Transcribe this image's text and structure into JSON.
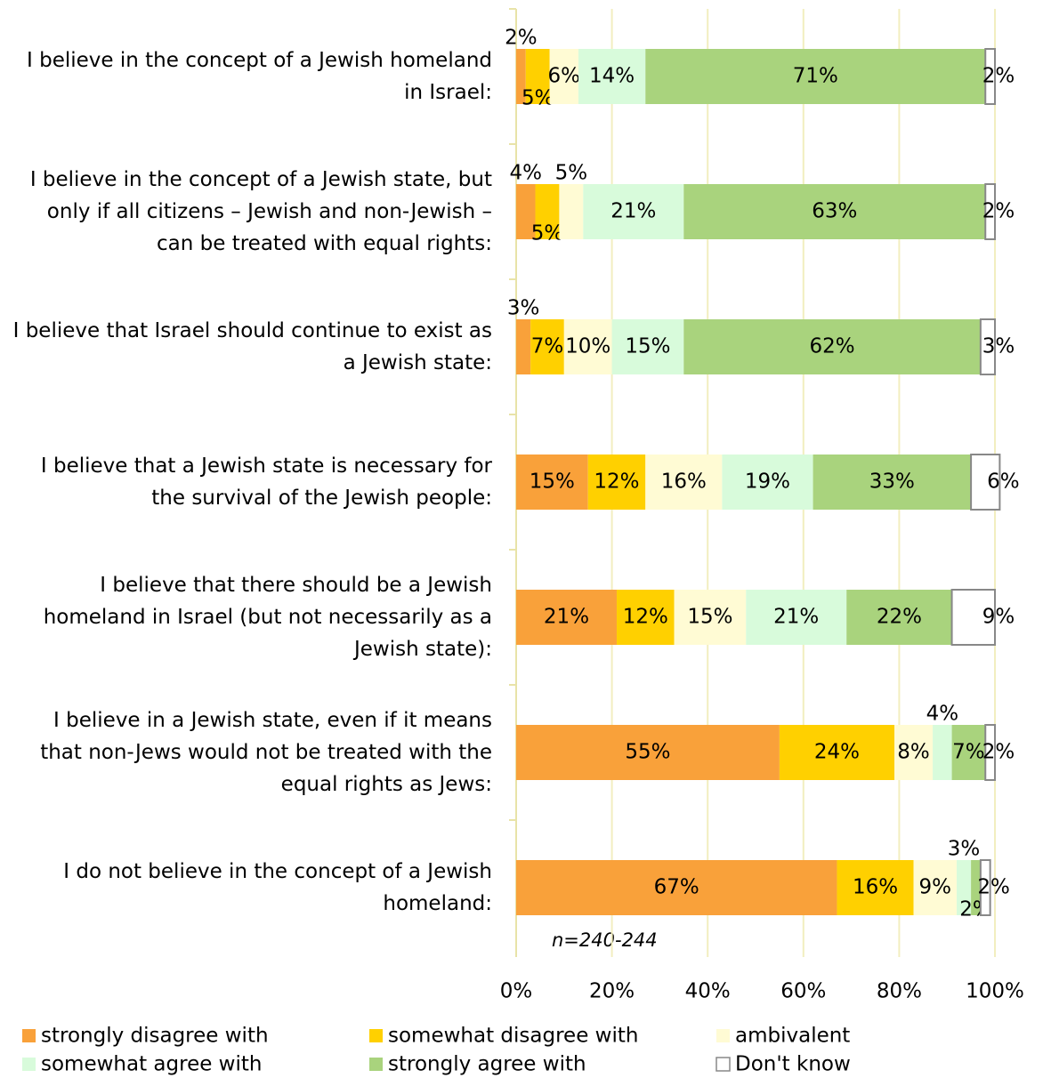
{
  "chart_data": {
    "type": "stacked-bar-horizontal",
    "categories": [
      "I believe in the concept of a Jewish homeland in Israel:",
      "I believe in the concept of a Jewish state, but only if all citizens – Jewish and non-Jewish – can be treated with equal rights:",
      "I believe that Israel should continue to exist as a Jewish state:",
      "I believe that a Jewish state is necessary for the survival of the Jewish people:",
      "I believe that there should be a Jewish homeland in Israel (but not necessarily as a Jewish state):",
      "I believe in a Jewish state, even if it means that non-Jews would not be treated with the equal rights as Jews:",
      "I do not believe in the concept of a Jewish homeland:"
    ],
    "series": [
      {
        "name": "strongly disagree with",
        "color": "#f9a13a",
        "values": [
          2,
          4,
          3,
          15,
          21,
          55,
          67
        ],
        "value_labels": [
          "2%",
          "4%",
          "3%",
          "15%",
          "21%",
          "55%",
          "67%"
        ]
      },
      {
        "name": "somewhat disagree with",
        "color": "#ffd000",
        "values": [
          5,
          5,
          7,
          12,
          12,
          24,
          16
        ],
        "value_labels": [
          "5%",
          "5%",
          "7%",
          "12%",
          "12%",
          "24%",
          "16%"
        ]
      },
      {
        "name": "ambivalent",
        "color": "#fffbd4",
        "values": [
          6,
          5,
          10,
          16,
          15,
          8,
          9
        ],
        "value_labels": [
          "6%",
          "5%",
          "10%",
          "16%",
          "15%",
          "8%",
          "9%"
        ]
      },
      {
        "name": "somewhat agree with",
        "color": "#d8fbdb",
        "values": [
          14,
          21,
          15,
          19,
          21,
          4,
          3
        ],
        "value_labels": [
          "14%",
          "21%",
          "15%",
          "19%",
          "21%",
          "4%",
          "3%"
        ]
      },
      {
        "name": "strongly agree with",
        "color": "#a9d37d",
        "values": [
          71,
          63,
          62,
          33,
          22,
          7,
          2
        ],
        "value_labels": [
          "71%",
          "63%",
          "62%",
          "33%",
          "22%",
          "7%",
          "2%"
        ]
      },
      {
        "name": "Don't know",
        "color": "#ffffff",
        "values": [
          2,
          2,
          3,
          6,
          9,
          2,
          2
        ],
        "value_labels": [
          "2%",
          "2%",
          "3%",
          "6%",
          "9%",
          "2%",
          "2%"
        ]
      }
    ],
    "xlim": [
      0,
      100
    ],
    "xticks": [
      {
        "value": 0,
        "label": "0%"
      },
      {
        "value": 20,
        "label": "20%"
      },
      {
        "value": 40,
        "label": "40%"
      },
      {
        "value": 60,
        "label": "60%"
      },
      {
        "value": 80,
        "label": "80%"
      },
      {
        "value": 100,
        "label": "100%"
      }
    ],
    "grid": true,
    "note": "n=240-244",
    "legend": "bottom"
  }
}
